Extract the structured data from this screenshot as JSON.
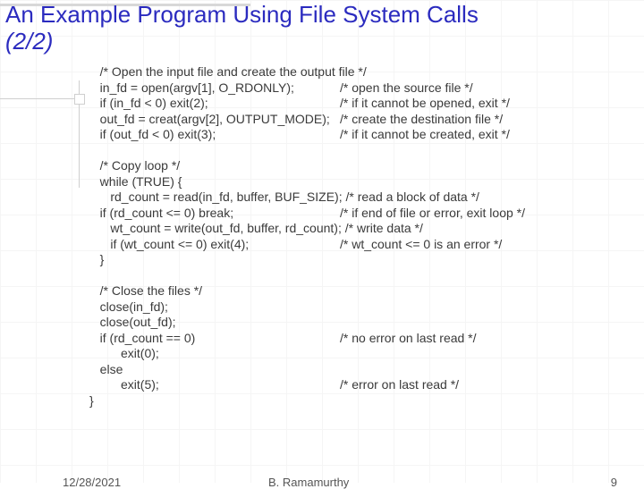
{
  "title": {
    "line1": "An Example Program Using File System Calls",
    "line2": "(2/2)",
    "color": "#2b2bbf",
    "fontsize": 26
  },
  "code": {
    "fontsize": 14,
    "color": "#3a3a3a",
    "left_lines": [
      "   /* Open the input file and create the output file */",
      "   in_fd = open(argv[1], O_RDONLY);",
      "   if (in_fd < 0) exit(2);",
      "   out_fd = creat(argv[2], OUTPUT_MODE);",
      "   if (out_fd < 0) exit(3);",
      "",
      "   /* Copy loop */",
      "   while (TRUE) {",
      "      rd_count = read(in_fd, buffer, BUF_SIZE); /* read a block of data */",
      "   if (rd_count <= 0) break;",
      "      wt_count = write(out_fd, buffer, rd_count); /* write data */",
      "      if (wt_count <= 0) exit(4);",
      "   }",
      "",
      "   /* Close the files */",
      "   close(in_fd);",
      "   close(out_fd);",
      "   if (rd_count == 0)",
      "         exit(0);",
      "   else",
      "         exit(5);",
      "}"
    ],
    "right_comments": [
      "",
      "/* open the source file */",
      "/* if it cannot be opened, exit */",
      "/* create the destination file */",
      "/* if it cannot be created, exit */",
      "",
      "",
      "",
      "",
      "/* if end of file or error, exit loop */",
      "",
      "/* wt_count <= 0 is an error */",
      "",
      "",
      "",
      "",
      "",
      "/* no error on last read */",
      "",
      "",
      "/* error on last read */",
      ""
    ]
  },
  "footer": {
    "date": "12/28/2021",
    "author": "B. Ramamurthy",
    "page": "9"
  },
  "colors": {
    "background": "#ffffff",
    "grid": "#f5f5f5",
    "title_rule": "#d8d8d8",
    "decor": "#cfcfcf"
  }
}
